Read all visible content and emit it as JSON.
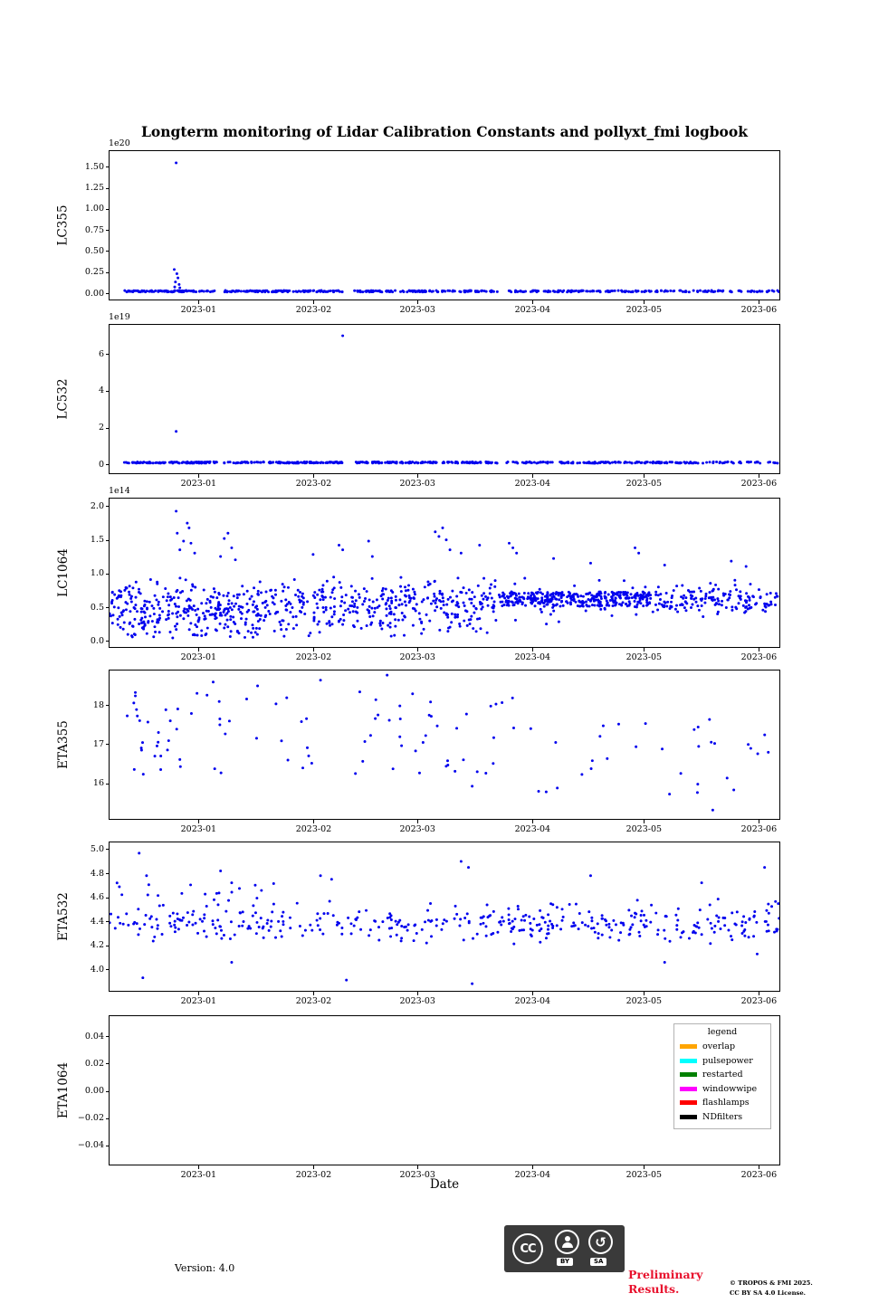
{
  "figure": {
    "title": "Longterm monitoring of Lidar Calibration Constants and pollyxt_fmi logbook",
    "xlabel": "Date"
  },
  "marker_color": "#0000ee",
  "x_axis": {
    "domain": [
      0,
      181
    ],
    "ticks": [
      {
        "v": 24,
        "label": "2023-01"
      },
      {
        "v": 55,
        "label": "2023-02"
      },
      {
        "v": 83,
        "label": "2023-03"
      },
      {
        "v": 114,
        "label": "2023-04"
      },
      {
        "v": 144,
        "label": "2023-05"
      },
      {
        "v": 175,
        "label": "2023-06"
      }
    ]
  },
  "chart_data": [
    {
      "type": "scatter",
      "name": "LC355",
      "ylabel": "LC355",
      "offset_text": "1e20",
      "ylim": [
        -0.09,
        1.69
      ],
      "yticks": [
        {
          "v": 0.0,
          "label": "0.00"
        },
        {
          "v": 0.25,
          "label": "0.25"
        },
        {
          "v": 0.5,
          "label": "0.50"
        },
        {
          "v": 0.75,
          "label": "0.75"
        },
        {
          "v": 1.0,
          "label": "1.00"
        },
        {
          "v": 1.25,
          "label": "1.25"
        },
        {
          "v": 1.5,
          "label": "1.50"
        }
      ],
      "scatter": {
        "bands": [
          {
            "x": [
              4,
              29
            ],
            "y": [
              0,
              0.018
            ],
            "n": 95,
            "mode": "uniform",
            "seed": 101
          },
          {
            "x": [
              31,
              63
            ],
            "y": [
              0,
              0.018
            ],
            "n": 115,
            "mode": "uniform",
            "seed": 102
          },
          {
            "x": [
              66,
              105
            ],
            "y": [
              0,
              0.018
            ],
            "n": 135,
            "mode": "uniform",
            "seed": 103
          },
          {
            "x": [
              107,
              181
            ],
            "y": [
              0,
              0.018
            ],
            "n": 170,
            "mode": "uniform",
            "seed": 104
          }
        ],
        "outliers": [
          [
            18,
            1.55
          ],
          [
            17.5,
            0.27
          ],
          [
            18.2,
            0.22
          ],
          [
            18.5,
            0.17
          ],
          [
            17.8,
            0.12
          ],
          [
            18.8,
            0.09
          ],
          [
            17.6,
            0.06
          ],
          [
            19,
            0.05
          ]
        ]
      }
    },
    {
      "type": "scatter",
      "name": "LC532",
      "ylabel": "LC532",
      "offset_text": "1e19",
      "ylim": [
        -0.55,
        7.6
      ],
      "yticks": [
        {
          "v": 0,
          "label": "0"
        },
        {
          "v": 2,
          "label": "2"
        },
        {
          "v": 4,
          "label": "4"
        },
        {
          "v": 6,
          "label": "6"
        }
      ],
      "scatter": {
        "bands": [
          {
            "x": [
              4,
              29
            ],
            "y": [
              0,
              0.08
            ],
            "n": 95,
            "mode": "uniform",
            "seed": 111
          },
          {
            "x": [
              31,
              63
            ],
            "y": [
              0,
              0.08
            ],
            "n": 115,
            "mode": "uniform",
            "seed": 112
          },
          {
            "x": [
              66,
              105
            ],
            "y": [
              0,
              0.08
            ],
            "n": 135,
            "mode": "uniform",
            "seed": 113
          },
          {
            "x": [
              107,
              181
            ],
            "y": [
              0,
              0.08
            ],
            "n": 170,
            "mode": "uniform",
            "seed": 114
          }
        ],
        "outliers": [
          [
            63,
            7.0
          ],
          [
            18,
            1.75
          ]
        ]
      }
    },
    {
      "type": "scatter",
      "name": "LC1064",
      "ylabel": "LC1064",
      "offset_text": "1e14",
      "ylim": [
        -0.11,
        2.12
      ],
      "yticks": [
        {
          "v": 0.0,
          "label": "0.0"
        },
        {
          "v": 0.5,
          "label": "0.5"
        },
        {
          "v": 1.0,
          "label": "1.0"
        },
        {
          "v": 1.5,
          "label": "1.5"
        },
        {
          "v": 2.0,
          "label": "2.0"
        }
      ],
      "scatter": {
        "bands": [
          {
            "x": [
              0,
              105
            ],
            "y": [
              0.02,
              1.08
            ],
            "n": 430,
            "mode": "gauss",
            "seed": 121
          },
          {
            "x": [
              0,
              42
            ],
            "y": [
              0.02,
              0.55
            ],
            "n": 150,
            "mode": "uniform",
            "seed": 122
          },
          {
            "x": [
              42,
              105
            ],
            "y": [
              0.05,
              0.75
            ],
            "n": 120,
            "mode": "uniform",
            "seed": 123
          },
          {
            "x": [
              105,
              146
            ],
            "y": [
              0.5,
              0.72
            ],
            "n": 300,
            "mode": "uniform",
            "seed": 124
          },
          {
            "x": [
              105,
              146
            ],
            "y": [
              0.15,
              1.05
            ],
            "n": 70,
            "mode": "gauss",
            "seed": 125
          },
          {
            "x": [
              146,
              181
            ],
            "y": [
              0.28,
              0.92
            ],
            "n": 160,
            "mode": "gauss",
            "seed": 126
          }
        ],
        "outliers": [
          [
            18,
            1.93
          ],
          [
            18.3,
            1.6
          ],
          [
            19,
            1.35
          ],
          [
            20,
            1.48
          ],
          [
            21,
            1.75
          ],
          [
            21.5,
            1.68
          ],
          [
            22,
            1.45
          ],
          [
            23,
            1.3
          ],
          [
            30,
            1.25
          ],
          [
            31,
            1.52
          ],
          [
            32,
            1.6
          ],
          [
            33,
            1.38
          ],
          [
            34,
            1.2
          ],
          [
            55,
            1.28
          ],
          [
            62,
            1.42
          ],
          [
            63,
            1.35
          ],
          [
            70,
            1.48
          ],
          [
            71,
            1.25
          ],
          [
            88,
            1.62
          ],
          [
            89,
            1.55
          ],
          [
            90,
            1.68
          ],
          [
            91,
            1.5
          ],
          [
            92,
            1.35
          ],
          [
            95,
            1.3
          ],
          [
            100,
            1.42
          ],
          [
            108,
            1.45
          ],
          [
            109,
            1.38
          ],
          [
            110,
            1.3
          ],
          [
            120,
            1.22
          ],
          [
            130,
            1.15
          ],
          [
            142,
            1.38
          ],
          [
            143,
            1.3
          ],
          [
            150,
            1.12
          ],
          [
            168,
            1.18
          ],
          [
            172,
            1.1
          ]
        ]
      }
    },
    {
      "type": "scatter",
      "name": "ETA355",
      "ylabel": "ETA355",
      "ylim": [
        15.05,
        18.9
      ],
      "yticks": [
        {
          "v": 16,
          "label": "16"
        },
        {
          "v": 17,
          "label": "17"
        },
        {
          "v": 18,
          "label": "18"
        }
      ],
      "scatter": {
        "bands": [
          {
            "x": [
              3,
              110
            ],
            "y": [
              16.2,
              18.35
            ],
            "n": 88,
            "mode": "uniform",
            "seed": 131
          },
          {
            "x": [
              110,
              180
            ],
            "y": [
              15.6,
              17.8
            ],
            "n": 30,
            "mode": "uniform",
            "seed": 132
          }
        ],
        "outliers": [
          [
            28,
            18.6
          ],
          [
            40,
            18.5
          ],
          [
            57,
            18.65
          ],
          [
            75,
            18.78
          ],
          [
            98,
            15.9
          ],
          [
            118,
            15.75
          ],
          [
            121,
            15.85
          ],
          [
            163,
            15.28
          ]
        ]
      }
    },
    {
      "type": "scatter",
      "name": "ETA532",
      "ylabel": "ETA532",
      "ylim": [
        3.81,
        5.06
      ],
      "yticks": [
        {
          "v": 4.0,
          "label": "4.0"
        },
        {
          "v": 4.2,
          "label": "4.2"
        },
        {
          "v": 4.4,
          "label": "4.4"
        },
        {
          "v": 4.6,
          "label": "4.6"
        },
        {
          "v": 4.8,
          "label": "4.8"
        },
        {
          "v": 5.0,
          "label": "5.0"
        }
      ],
      "scatter": {
        "bands": [
          {
            "x": [
              0,
              181
            ],
            "y": [
              4.16,
              4.6
            ],
            "n": 330,
            "mode": "gauss",
            "seed": 141
          },
          {
            "x": [
              0,
              45
            ],
            "y": [
              4.25,
              4.72
            ],
            "n": 45,
            "mode": "uniform",
            "seed": 142
          },
          {
            "x": [
              100,
              181
            ],
            "y": [
              4.25,
              4.55
            ],
            "n": 60,
            "mode": "uniform",
            "seed": 143
          }
        ],
        "outliers": [
          [
            8,
            4.97
          ],
          [
            10,
            4.78
          ],
          [
            30,
            4.82
          ],
          [
            33,
            4.72
          ],
          [
            57,
            4.78
          ],
          [
            60,
            4.75
          ],
          [
            95,
            4.9
          ],
          [
            97,
            4.85
          ],
          [
            130,
            4.78
          ],
          [
            160,
            4.72
          ],
          [
            177,
            4.85
          ],
          [
            9,
            3.92
          ],
          [
            33,
            4.05
          ],
          [
            64,
            3.9
          ],
          [
            98,
            3.87
          ],
          [
            150,
            4.05
          ],
          [
            175,
            4.12
          ]
        ]
      }
    },
    {
      "type": "scatter",
      "name": "ETA1064",
      "ylabel": "ETA1064",
      "ylim": [
        -0.055,
        0.055
      ],
      "yticks": [
        {
          "v": -0.04,
          "label": "−0.04"
        },
        {
          "v": -0.02,
          "label": "−0.02"
        },
        {
          "v": 0.0,
          "label": "0.00"
        },
        {
          "v": 0.02,
          "label": "0.02"
        },
        {
          "v": 0.04,
          "label": "0.04"
        }
      ],
      "scatter": {
        "bands": [],
        "outliers": []
      }
    }
  ],
  "legend": {
    "title": "legend",
    "entries": [
      {
        "label": "overlap",
        "color": "#ffa500"
      },
      {
        "label": "pulsepower",
        "color": "#00ffff"
      },
      {
        "label": "restarted",
        "color": "#008000"
      },
      {
        "label": "windowwipe",
        "color": "#ff00ff"
      },
      {
        "label": "flashlamps",
        "color": "#ff0000"
      },
      {
        "label": "NDfilters",
        "color": "#000000"
      }
    ]
  },
  "footer": {
    "version": "Version: 4.0",
    "badge": {
      "cc": "CC",
      "by": "BY",
      "sa": "SA",
      "sa_glyph": "↺"
    },
    "preliminary_line1": "Preliminary",
    "preliminary_line2": "Results.",
    "preliminary_color": "#e8112d",
    "copyright_line1": "© TROPOS & FMI 2025.",
    "copyright_line2": "CC BY SA 4.0 License."
  }
}
